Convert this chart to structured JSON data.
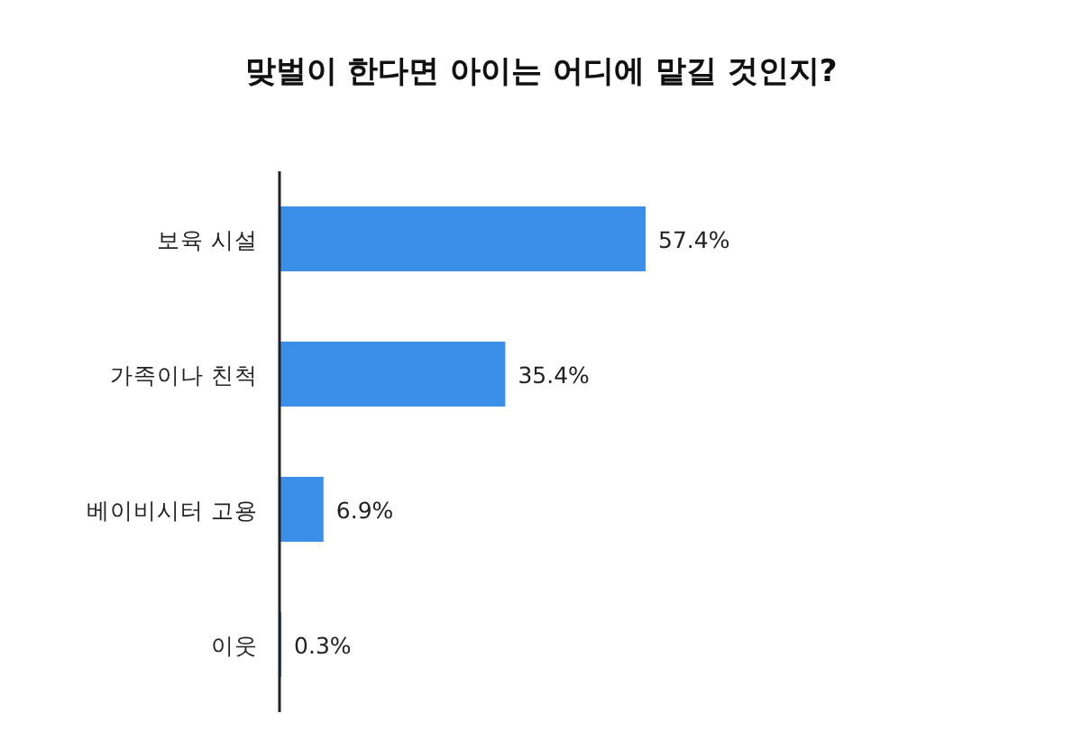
{
  "chart_data": {
    "type": "bar",
    "orientation": "horizontal",
    "title": "맞벌이 한다면 아이는 어디에 맡길 것인지?",
    "categories": [
      "보육 시설",
      "가족이나 친척",
      "베이비시터 고용",
      "이웃"
    ],
    "values": [
      57.4,
      35.4,
      6.9,
      0.3
    ],
    "value_labels": [
      "57.4%",
      "35.4%",
      "6.9%",
      "0.3%"
    ],
    "color": "#3c8fe8"
  }
}
